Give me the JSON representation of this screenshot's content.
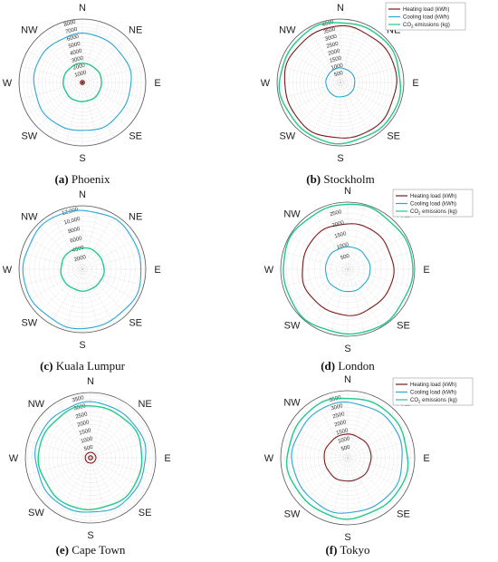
{
  "directions": [
    "N",
    "NE",
    "E",
    "SE",
    "S",
    "SW",
    "W",
    "NW"
  ],
  "legend": {
    "heating": "Heating load (kWh)",
    "cooling": "Cooling load (kWh)",
    "co2_prefix": "CO",
    "co2_sub": "2",
    "co2_suffix": " emissions (kg)"
  },
  "colors": {
    "heating": "#7b1a1a",
    "cooling": "#2aa7d8",
    "co2": "#22c98b",
    "grid": "#c8c8c8",
    "frame": "#555555"
  },
  "chart_data": [
    {
      "type": "polar-line",
      "caption_letter": "(a)",
      "caption_city": "Phoenix",
      "r_ticks": [
        "1000",
        "2000",
        "3000",
        "4000",
        "5000",
        "6000",
        "7000",
        "8000"
      ],
      "rlim": [
        0,
        8600
      ],
      "legend_visible": false,
      "series": [
        {
          "key": "heating",
          "value": 90
        },
        {
          "key": "cooling",
          "value": 6600
        },
        {
          "key": "co2",
          "value": 2600
        }
      ]
    },
    {
      "type": "polar-line",
      "caption_letter": "(b)",
      "caption_city": "Stockholm",
      "r_ticks": [
        "500",
        "1000",
        "1500",
        "2000",
        "2500",
        "3000",
        "3500",
        "4000"
      ],
      "rlim": [
        0,
        4300
      ],
      "legend_visible": true,
      "series": [
        {
          "key": "heating",
          "value": 3800
        },
        {
          "key": "cooling",
          "value": 980
        },
        {
          "key": "co2",
          "value": 4100
        }
      ]
    },
    {
      "type": "polar-line",
      "caption_letter": "(c)",
      "caption_city": "Kuala Lumpur",
      "r_ticks": [
        "2000",
        "4000",
        "6000",
        "8000",
        "10,000",
        "12,000"
      ],
      "rlim": [
        0,
        13200
      ],
      "legend_visible": false,
      "series": [
        {
          "key": "heating",
          "value": 0
        },
        {
          "key": "cooling",
          "value": 12300
        },
        {
          "key": "co2",
          "value": 4500
        }
      ]
    },
    {
      "type": "polar-line",
      "caption_letter": "(d)",
      "caption_city": "London",
      "r_ticks": [
        "500",
        "1000",
        "1500",
        "2000",
        "2500"
      ],
      "rlim": [
        0,
        3000
      ],
      "legend_visible": true,
      "series": [
        {
          "key": "heating",
          "value": 2050
        },
        {
          "key": "cooling",
          "value": 1000
        },
        {
          "key": "co2",
          "value": 2900
        }
      ]
    },
    {
      "type": "polar-line",
      "caption_letter": "(e)",
      "caption_city": "Cape Town",
      "r_ticks": [
        "500",
        "1000",
        "1500",
        "2000",
        "2500",
        "3000",
        "3500"
      ],
      "rlim": [
        0,
        3900
      ],
      "legend_visible": false,
      "series": [
        {
          "key": "heating",
          "value": 320
        },
        {
          "key": "cooling",
          "value": 3300
        },
        {
          "key": "co2",
          "value": 3100
        }
      ]
    },
    {
      "type": "polar-line",
      "caption_letter": "(f)",
      "caption_city": "Tokyo",
      "r_ticks": [
        "500",
        "1000",
        "1500",
        "2000",
        "2500",
        "3000",
        "3500"
      ],
      "rlim": [
        0,
        4000
      ],
      "legend_visible": true,
      "series": [
        {
          "key": "heating",
          "value": 1400
        },
        {
          "key": "cooling",
          "value": 3300
        },
        {
          "key": "co2",
          "value": 3600
        }
      ]
    }
  ]
}
